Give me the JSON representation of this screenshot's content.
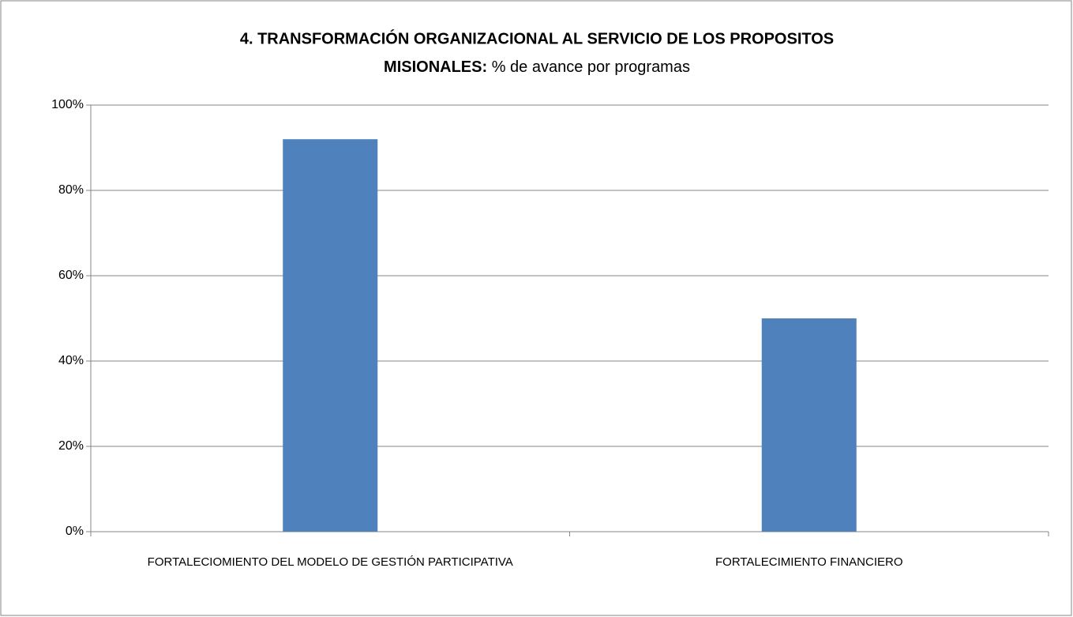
{
  "chart_data": {
    "type": "bar",
    "title": [
      "4. TRANSFORMACIÓN ORGANIZACIONAL AL SERVICIO DE LOS PROPOSITOS",
      "MISIONALES:"
    ],
    "subtitle": "% de avance por programas",
    "categories": [
      "FORTALECIOMIENTO DEL MODELO DE GESTIÓN PARTICIPATIVA",
      "FORTALECIMIENTO FINANCIERO"
    ],
    "values": [
      92,
      50
    ],
    "color": "#4f81bd",
    "ylim": [
      0,
      100
    ],
    "yticks": [
      {
        "value": 0,
        "label": "0%"
      },
      {
        "value": 20,
        "label": "20%"
      },
      {
        "value": 40,
        "label": "40%"
      },
      {
        "value": 60,
        "label": "60%"
      },
      {
        "value": 80,
        "label": "80%"
      },
      {
        "value": 100,
        "label": "100%"
      }
    ],
    "grid": true
  }
}
